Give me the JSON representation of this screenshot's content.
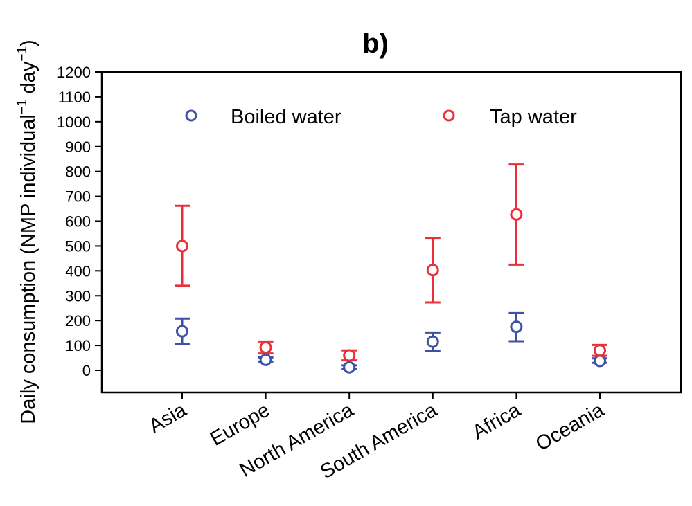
{
  "chart_data": {
    "type": "scatter",
    "title": "b)",
    "xlabel": "",
    "ylabel": "Daily consumption (NMP individual",
    "ylabel_unit_mid": "day",
    "ylabel_sup": "−1",
    "ylabel_close": ")",
    "ylim": [
      0,
      1200
    ],
    "yticks": [
      "0",
      "100",
      "200",
      "300",
      "400",
      "500",
      "600",
      "700",
      "800",
      "900",
      "1000",
      "1100",
      "1200"
    ],
    "categories": [
      "Asia",
      "Europe",
      "North America",
      "South America",
      "Africa",
      "Oceania"
    ],
    "grid": false,
    "legend_position": "top",
    "error_bars": true,
    "series": [
      {
        "name": "Boiled water",
        "color": "#3f51a5",
        "values": [
          157,
          42,
          12,
          115,
          175,
          38
        ],
        "err_low": [
          105,
          35,
          5,
          78,
          117,
          30
        ],
        "err_high": [
          208,
          52,
          20,
          152,
          230,
          48
        ]
      },
      {
        "name": "Tap water",
        "color": "#e8303a",
        "values": [
          500,
          92,
          60,
          403,
          627,
          80
        ],
        "err_low": [
          340,
          68,
          40,
          273,
          425,
          58
        ],
        "err_high": [
          662,
          116,
          80,
          533,
          828,
          102
        ]
      }
    ]
  }
}
